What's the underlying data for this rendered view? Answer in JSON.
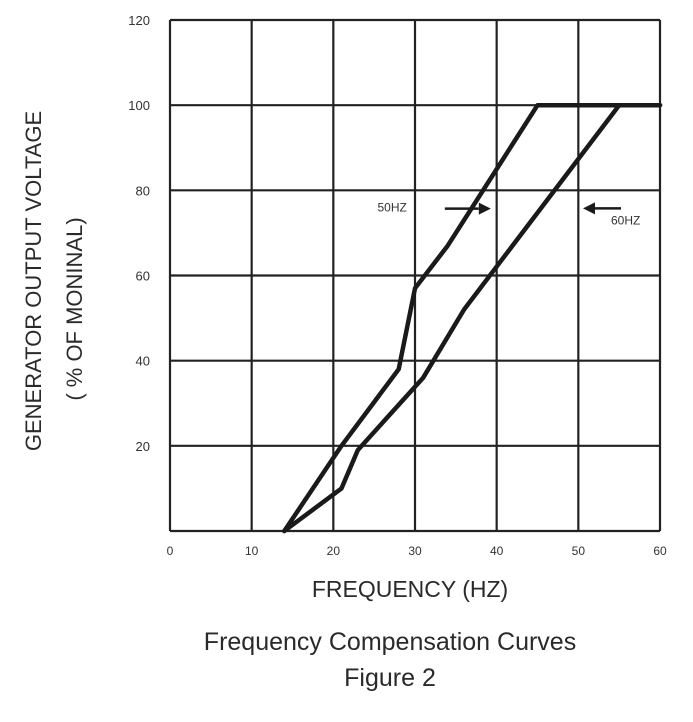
{
  "chart_data": {
    "type": "line",
    "title": "",
    "xlabel": "FREQUENCY (HZ)",
    "ylabel_line1": "GENERATOR OUTPUT VOLTAGE",
    "ylabel_line2": "( % OF MONINAL)",
    "xlim": [
      0,
      60
    ],
    "ylim": [
      0,
      120
    ],
    "x_ticks": [
      "0",
      "10",
      "20",
      "30",
      "40",
      "50",
      "60"
    ],
    "y_ticks": [
      "20",
      "40",
      "60",
      "80",
      "100",
      "120"
    ],
    "grid": true,
    "series": [
      {
        "name": "50HZ",
        "points": [
          [
            14,
            0
          ],
          [
            21,
            20
          ],
          [
            28,
            38
          ],
          [
            30,
            57
          ],
          [
            34,
            67
          ],
          [
            45,
            100
          ],
          [
            60,
            100
          ]
        ]
      },
      {
        "name": "60HZ",
        "points": [
          [
            14,
            0
          ],
          [
            21,
            10
          ],
          [
            23,
            19
          ],
          [
            31,
            36
          ],
          [
            36,
            52
          ],
          [
            55,
            100
          ],
          [
            60,
            100
          ]
        ]
      }
    ],
    "annotations": [
      {
        "text": "50HZ",
        "series": "50HZ",
        "x": 29,
        "y": 75
      },
      {
        "text": "60HZ",
        "series": "60HZ",
        "x": 54,
        "y": 72
      }
    ]
  },
  "caption": {
    "line1": "Frequency Compensation Curves",
    "line2": "Figure 2"
  }
}
